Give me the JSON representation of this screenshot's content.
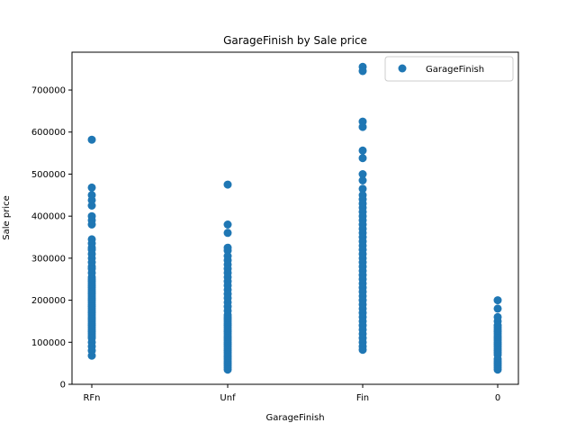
{
  "chart_data": {
    "type": "scatter",
    "title": "GarageFinish by Sale price",
    "xlabel": "GarageFinish",
    "ylabel": "Sale price",
    "categories": [
      "RFn",
      "Unf",
      "Fin",
      "0"
    ],
    "ylim": [
      0,
      790000
    ],
    "yticks": [
      0,
      100000,
      200000,
      300000,
      400000,
      500000,
      600000,
      700000
    ],
    "ytick_labels": [
      "0",
      "100000",
      "200000",
      "300000",
      "400000",
      "500000",
      "600000",
      "700000"
    ],
    "grid": false,
    "legend_position": "top-right",
    "marker_color": "#1f77b4",
    "series": [
      {
        "name": "GarageFinish",
        "points": [
          {
            "x": "RFn",
            "y": [
              582000,
              468000,
              450000,
              438000,
              425000,
              400000,
              390000,
              380000,
              345000,
              335000,
              325000,
              320000,
              310000,
              300000,
              290000,
              280000,
              275000,
              265000,
              255000,
              250000,
              245000,
              240000,
              235000,
              230000,
              225000,
              220000,
              215000,
              210000,
              205000,
              200000,
              195000,
              190000,
              185000,
              180000,
              175000,
              170000,
              165000,
              160000,
              155000,
              150000,
              145000,
              140000,
              135000,
              130000,
              125000,
              120000,
              115000,
              110000,
              100000,
              90000,
              80000,
              68000
            ]
          },
          {
            "x": "Unf",
            "y": [
              475000,
              380000,
              360000,
              325000,
              318000,
              305000,
              295000,
              285000,
              275000,
              265000,
              255000,
              245000,
              235000,
              225000,
              215000,
              205000,
              195000,
              185000,
              175000,
              165000,
              160000,
              155000,
              150000,
              145000,
              140000,
              135000,
              130000,
              125000,
              120000,
              115000,
              110000,
              105000,
              100000,
              95000,
              90000,
              85000,
              80000,
              75000,
              70000,
              65000,
              60000,
              55000,
              50000,
              45000,
              40000,
              35000
            ]
          },
          {
            "x": "Fin",
            "y": [
              755000,
              745000,
              625000,
              612000,
              556000,
              538000,
              500000,
              485000,
              465000,
              450000,
              440000,
              430000,
              420000,
              410000,
              400000,
              390000,
              380000,
              370000,
              360000,
              350000,
              340000,
              330000,
              320000,
              310000,
              300000,
              290000,
              280000,
              270000,
              260000,
              250000,
              240000,
              230000,
              220000,
              210000,
              200000,
              190000,
              180000,
              170000,
              160000,
              150000,
              140000,
              130000,
              120000,
              110000,
              100000,
              90000,
              82000
            ]
          },
          {
            "x": "0",
            "y": [
              200000,
              180000,
              160000,
              150000,
              140000,
              135000,
              130000,
              125000,
              120000,
              115000,
              110000,
              105000,
              100000,
              95000,
              90000,
              85000,
              80000,
              75000,
              70000,
              60000,
              55000,
              50000,
              45000,
              40000,
              35000
            ]
          }
        ]
      }
    ]
  }
}
